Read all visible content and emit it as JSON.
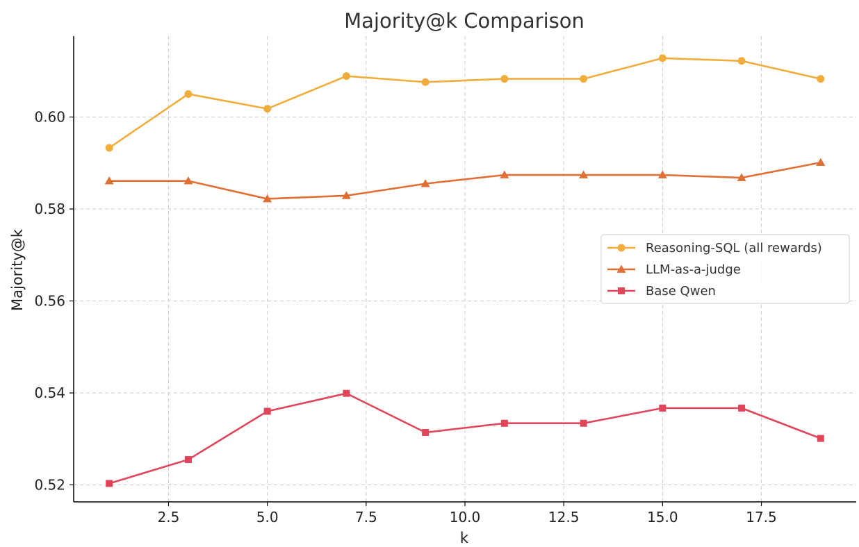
{
  "chart_data": {
    "type": "line",
    "title": "Majority@k Comparison",
    "xlabel": "k",
    "ylabel": "Majority@k",
    "xlim": [
      0.1,
      19.9
    ],
    "ylim": [
      0.5163,
      0.6176
    ],
    "xticks": [
      2.5,
      5.0,
      7.5,
      10.0,
      12.5,
      15.0,
      17.5
    ],
    "xtick_labels": [
      "2.5",
      "5.0",
      "7.5",
      "10.0",
      "12.5",
      "15.0",
      "17.5"
    ],
    "yticks": [
      0.52,
      0.54,
      0.56,
      0.58,
      0.6
    ],
    "ytick_labels": [
      "0.52",
      "0.54",
      "0.56",
      "0.58",
      "0.60"
    ],
    "grid": true,
    "legend_position": "center-right",
    "x": [
      1,
      3,
      5,
      7,
      9,
      11,
      13,
      15,
      17,
      19
    ],
    "series": [
      {
        "name": "Reasoning-SQL (all rewards)",
        "color": "#f0ad3c",
        "marker": "circle",
        "values": [
          0.5933,
          0.605,
          0.6018,
          0.6089,
          0.6076,
          0.6083,
          0.6083,
          0.6128,
          0.6122,
          0.6083
        ]
      },
      {
        "name": "LLM-as-a-judge",
        "color": "#e06f33",
        "marker": "triangle",
        "values": [
          0.5861,
          0.5861,
          0.5822,
          0.5829,
          0.5855,
          0.5874,
          0.5874,
          0.5874,
          0.5868,
          0.5901
        ]
      },
      {
        "name": "Base Qwen",
        "color": "#e0455a",
        "marker": "square",
        "values": [
          0.5203,
          0.5255,
          0.536,
          0.5399,
          0.5314,
          0.5334,
          0.5334,
          0.5367,
          0.5367,
          0.5301
        ]
      }
    ]
  }
}
